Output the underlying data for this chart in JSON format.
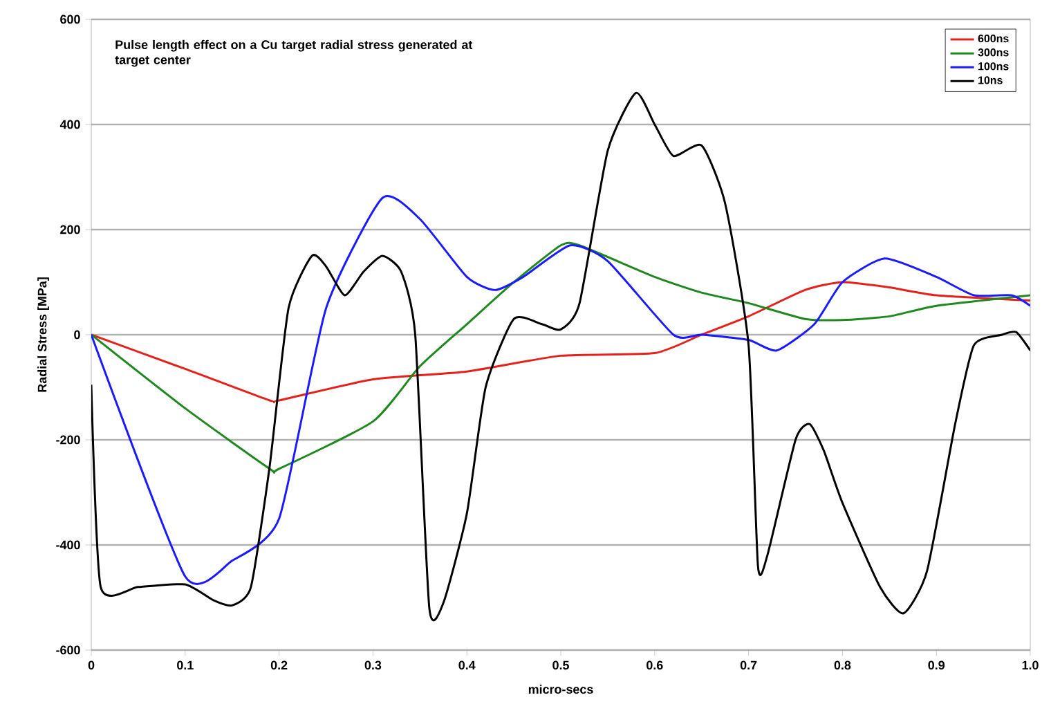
{
  "chart_data": {
    "type": "line",
    "title": "Pulse length effect on a Cu target radial stress generated at target center",
    "xlabel": "micro-secs",
    "ylabel": "Radial Stress [MPa]",
    "xlim": [
      0,
      1
    ],
    "ylim": [
      -600,
      600
    ],
    "xticks": [
      0,
      0.1,
      0.2,
      0.3,
      0.4,
      0.5,
      0.6,
      0.7,
      0.8,
      0.9,
      {
        "value": 1,
        "label": "1.0"
      }
    ],
    "yticks": [
      -600,
      -400,
      -200,
      0,
      200,
      400,
      600
    ],
    "grid": "y",
    "legend": "top right",
    "series": [
      {
        "name": "600ns",
        "color": "#e8201a",
        "x": [
          0,
          0.1,
          0.19,
          0.2,
          0.3,
          0.4,
          0.5,
          0.6,
          0.65,
          0.7,
          0.76,
          0.8,
          0.85,
          0.9,
          1.0
        ],
        "values": [
          0,
          -65,
          -125,
          -125,
          -85,
          -70,
          -40,
          -35,
          0,
          35,
          85,
          100,
          90,
          75,
          65
        ]
      },
      {
        "name": "300ns",
        "color": "#1e8a1e",
        "x": [
          0,
          0.1,
          0.19,
          0.2,
          0.3,
          0.35,
          0.4,
          0.45,
          0.5,
          0.52,
          0.6,
          0.65,
          0.7,
          0.76,
          0.8,
          0.85,
          0.9,
          1.0
        ],
        "values": [
          0,
          -140,
          -255,
          -255,
          -165,
          -60,
          20,
          100,
          170,
          170,
          110,
          80,
          60,
          30,
          28,
          35,
          55,
          75
        ]
      },
      {
        "name": "100ns",
        "color": "#1a1aff",
        "x": [
          0,
          0.1,
          0.15,
          0.2,
          0.25,
          0.31,
          0.35,
          0.4,
          0.43,
          0.46,
          0.51,
          0.55,
          0.62,
          0.65,
          0.7,
          0.73,
          0.77,
          0.8,
          0.845,
          0.9,
          0.94,
          0.98,
          1.0
        ],
        "values": [
          0,
          -460,
          -430,
          -350,
          50,
          260,
          220,
          110,
          85,
          110,
          170,
          140,
          0,
          0,
          -10,
          -30,
          20,
          100,
          145,
          110,
          75,
          75,
          55
        ]
      },
      {
        "name": "10ns",
        "color": "#000000",
        "x": [
          0,
          0.01,
          0.05,
          0.1,
          0.13,
          0.15,
          0.17,
          0.19,
          0.21,
          0.235,
          0.25,
          0.27,
          0.29,
          0.31,
          0.33,
          0.345,
          0.36,
          0.375,
          0.4,
          0.42,
          0.45,
          0.48,
          0.5,
          0.52,
          0.55,
          0.58,
          0.6,
          0.62,
          0.65,
          0.675,
          0.7,
          0.71,
          0.72,
          0.75,
          0.765,
          0.78,
          0.8,
          0.84,
          0.865,
          0.89,
          0.92,
          0.94,
          0.97,
          0.985,
          1.0
        ],
        "values": [
          -95,
          -480,
          -480,
          -475,
          -505,
          -515,
          -480,
          -250,
          50,
          150,
          130,
          75,
          120,
          150,
          120,
          0,
          -520,
          -510,
          -340,
          -100,
          30,
          20,
          10,
          60,
          350,
          460,
          400,
          340,
          360,
          250,
          -20,
          -440,
          -420,
          -200,
          -170,
          -220,
          -320,
          -480,
          -530,
          -450,
          -170,
          -20,
          0,
          5,
          -30
        ]
      }
    ]
  }
}
